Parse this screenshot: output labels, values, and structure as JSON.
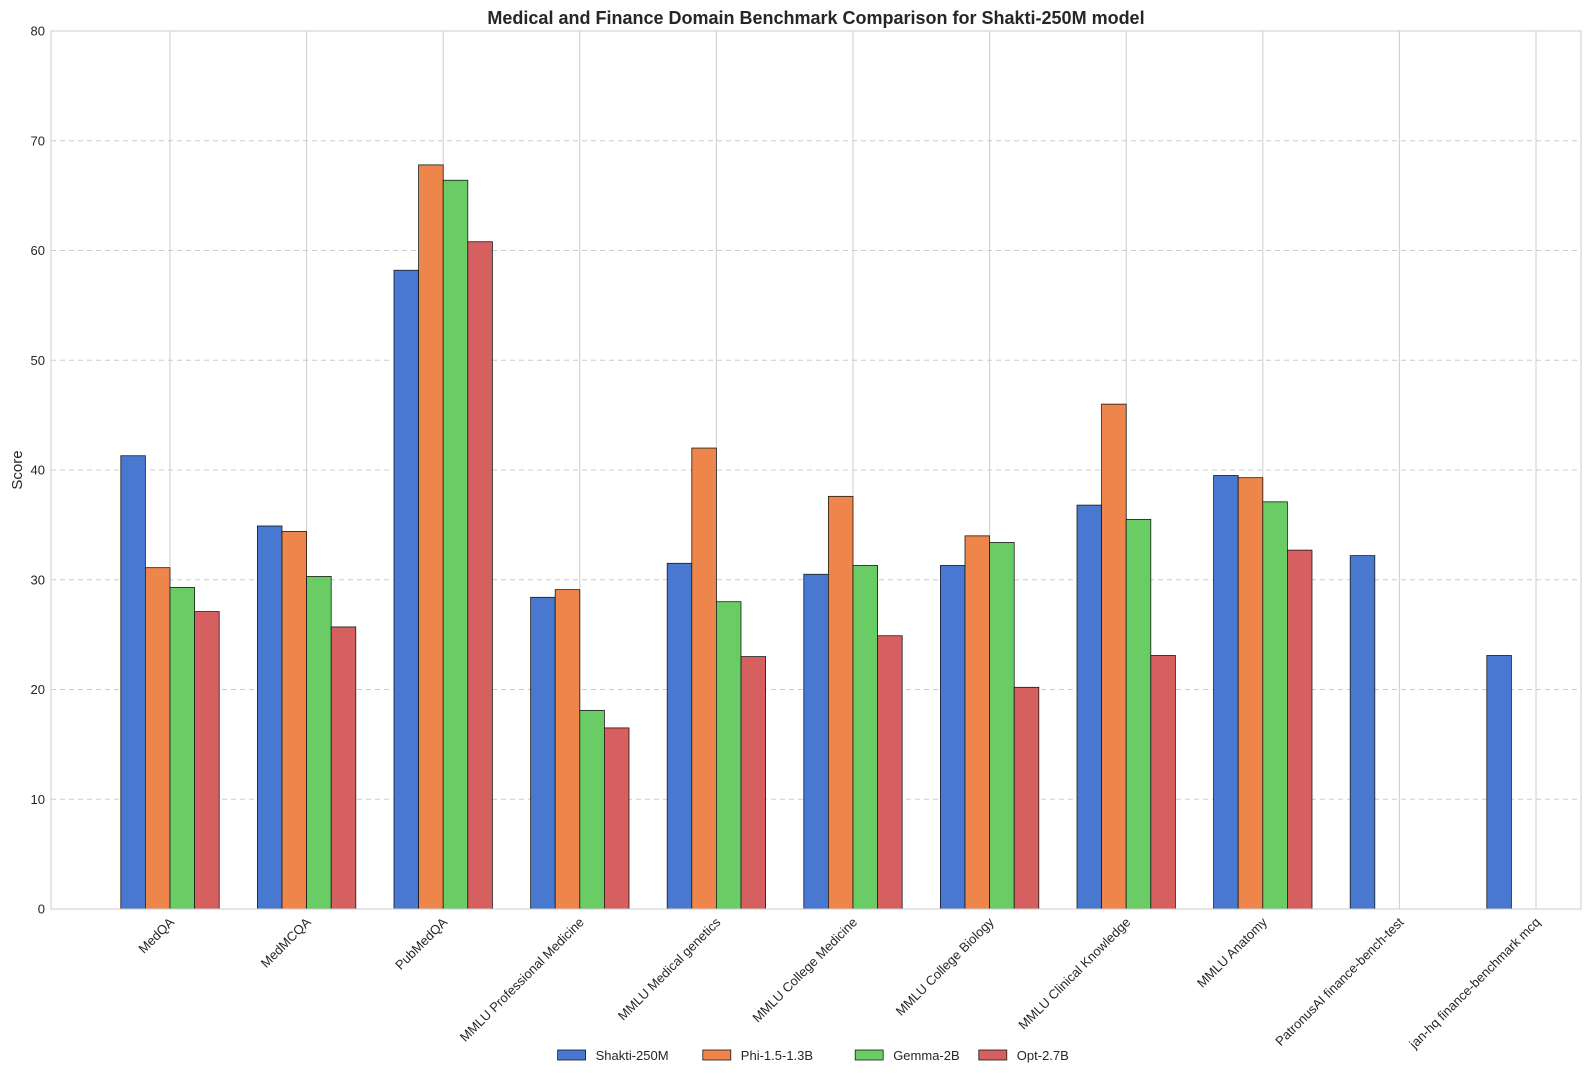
{
  "chart_data": {
    "type": "bar",
    "title": "Medical and Finance Domain Benchmark Comparison for Shakti-250M model",
    "xlabel": "",
    "ylabel": "Score",
    "ylim": [
      0,
      80
    ],
    "yticks": [
      0,
      10,
      20,
      30,
      40,
      50,
      60,
      70,
      80
    ],
    "grid": true,
    "legend_position": "bottom-center",
    "categories": [
      "MedQA",
      "MedMCQA",
      "PubMedQA",
      "MMLU Professional Medicine",
      "MMLU Medical genetics",
      "MMLU College Medicine",
      "MMLU College Biology",
      "MMLU Clinical Knowledge",
      "MMLU Anatomy",
      "PatronusAI finance-bench-test",
      "jan-hq finance-benchmark mcq"
    ],
    "series": [
      {
        "name": "Shakti-250M",
        "color": "#4878d0",
        "values": [
          41.3,
          34.9,
          58.2,
          28.4,
          31.5,
          30.5,
          31.3,
          36.8,
          39.5,
          32.2,
          23.1
        ]
      },
      {
        "name": "Phi-1.5-1.3B",
        "color": "#ee854a",
        "values": [
          31.1,
          34.4,
          67.8,
          29.1,
          42.0,
          37.6,
          34.0,
          46.0,
          39.3,
          null,
          null
        ]
      },
      {
        "name": "Gemma-2B",
        "color": "#6acc64",
        "values": [
          29.3,
          30.3,
          66.4,
          18.1,
          28.0,
          31.3,
          33.4,
          35.5,
          37.1,
          null,
          null
        ]
      },
      {
        "name": "Opt-2.7B",
        "color": "#d65f5f",
        "values": [
          27.1,
          25.7,
          60.8,
          16.5,
          23.0,
          24.9,
          20.2,
          23.1,
          32.7,
          null,
          null
        ]
      }
    ]
  }
}
